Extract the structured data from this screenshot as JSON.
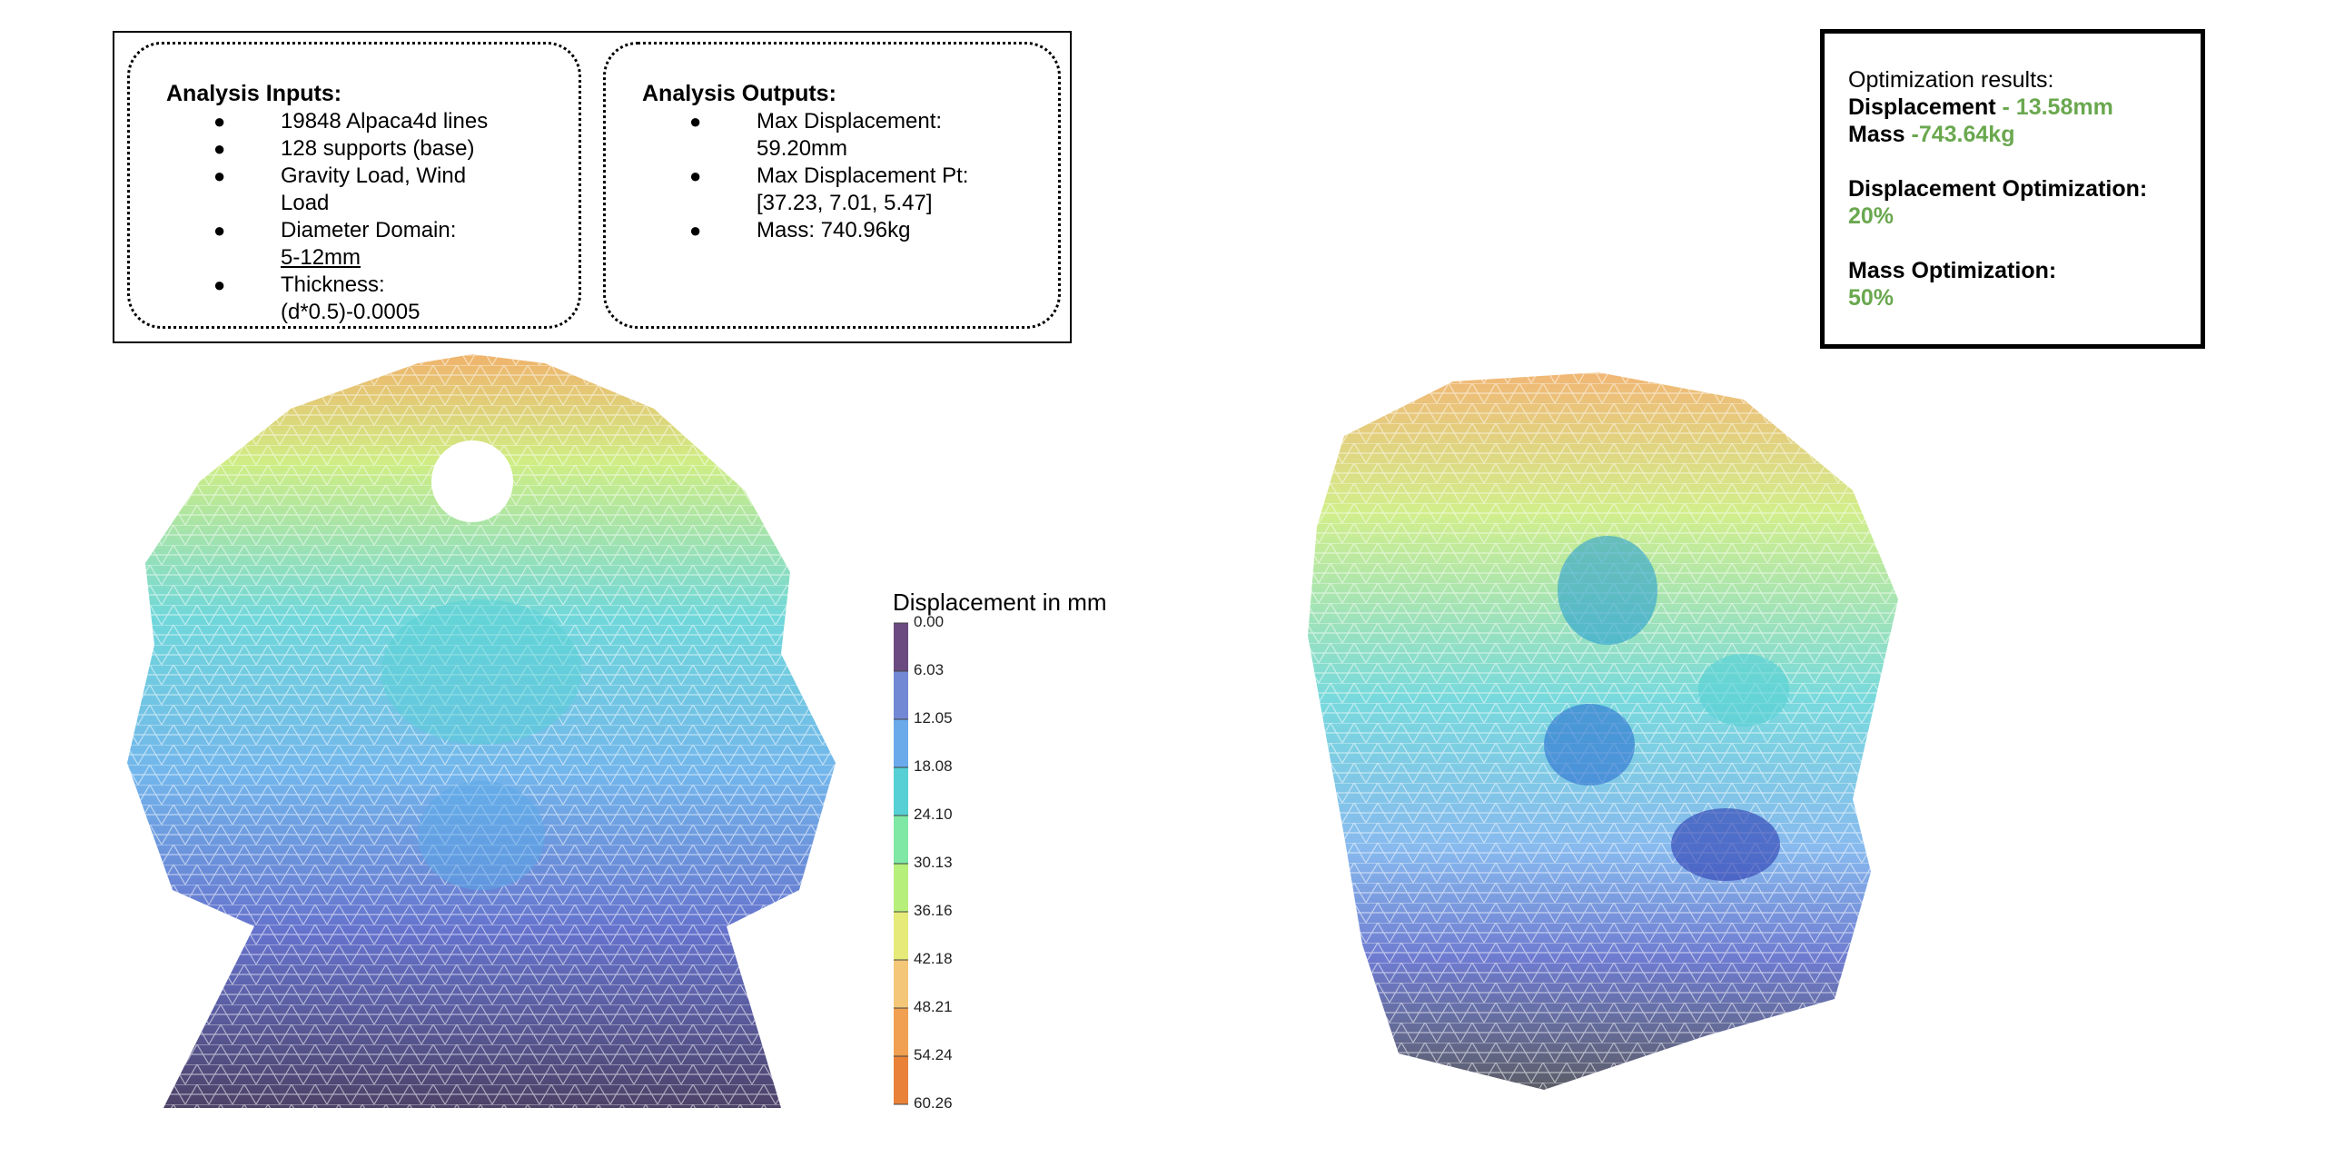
{
  "inputs": {
    "title": "Analysis Inputs:",
    "items": [
      {
        "bullet": "●",
        "text": "19848 Alpaca4d lines"
      },
      {
        "bullet": "●",
        "text": "128 supports (base)"
      },
      {
        "bullet": "●",
        "text": "Gravity Load, Wind Load"
      },
      {
        "bullet": "●",
        "text": "Diameter Domain:",
        "text2": "5-12mm"
      },
      {
        "bullet": "●",
        "text": "Thickness: (d*0.5)-0.0005"
      }
    ]
  },
  "outputs": {
    "title": "Analysis Outputs:",
    "items": [
      {
        "bullet": "●",
        "text": "Max Displacement: 59.20mm"
      },
      {
        "bullet": "●",
        "text": "Max Displacement Pt: [37.23, 7.01, 5.47]"
      },
      {
        "bullet": "●",
        "text": "Mass: 740.96kg"
      }
    ]
  },
  "results": {
    "heading": "Optimization results:",
    "displacement_label": "Displacement",
    "displacement_value": "- 13.58mm",
    "mass_label": "Mass",
    "mass_value": "-743.64kg",
    "disp_opt_label": "Displacement Optimization:",
    "disp_opt_value": "20%",
    "mass_opt_label": "Mass Optimization:",
    "mass_opt_value": "50%"
  },
  "legend": {
    "title": "Displacement in mm",
    "ticks": [
      "0.00",
      "6.03",
      "12.05",
      "18.08",
      "24.10",
      "30.13",
      "36.16",
      "42.18",
      "48.21",
      "54.24",
      "60.26"
    ],
    "colors": [
      "#6b4a82",
      "#7388d4",
      "#6aa9ea",
      "#56d0d4",
      "#7ee8a4",
      "#b6ef7a",
      "#e6ea78",
      "#f4c778",
      "#f0a050",
      "#e98238",
      "#e06a20"
    ]
  }
}
